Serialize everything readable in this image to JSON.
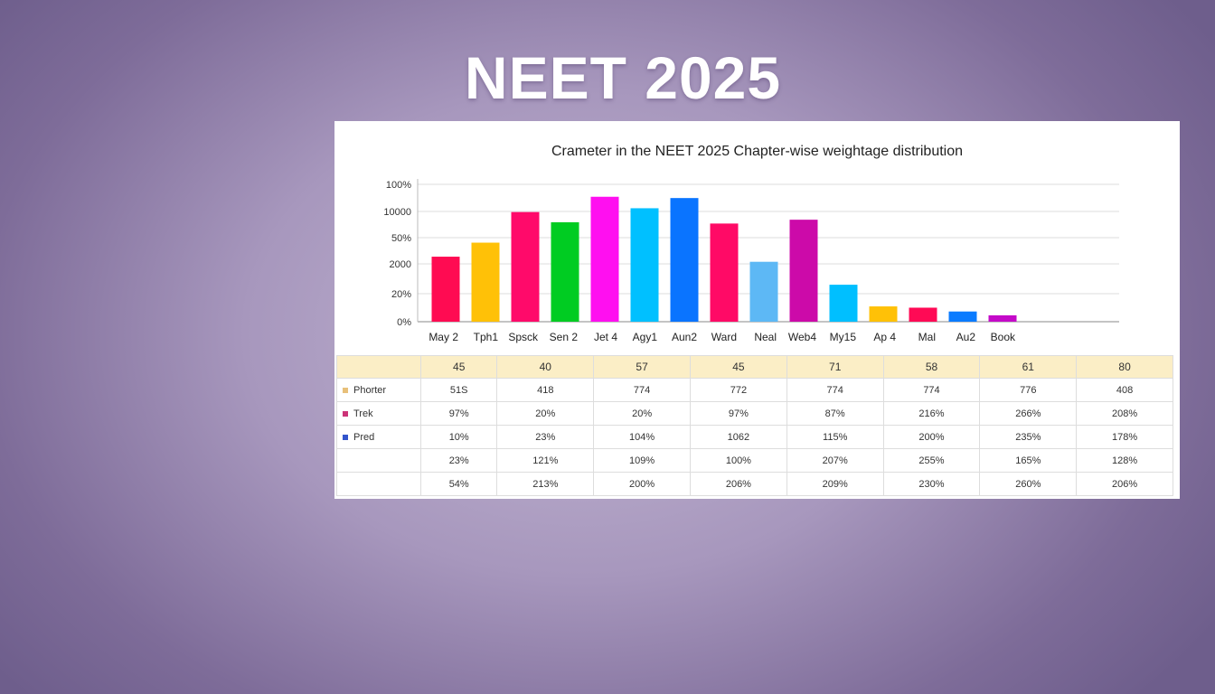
{
  "page_title": "NEET 2025",
  "chart_data": {
    "type": "bar",
    "title": "Crameter in the NEET 2025 Chapter-wise weightage distribution",
    "xlabel": "",
    "ylabel": "",
    "grid": true,
    "ytick_labels": [
      "0%",
      "20%",
      "2000",
      "50%",
      "10000",
      "100%"
    ],
    "ylim": [
      0,
      5.6
    ],
    "categories": [
      "May 2",
      "Tph1",
      "Spsck",
      "Sen 2",
      "Jet 4",
      "Agy1",
      "Aun2",
      "Ward",
      "Neal",
      "Web4",
      "My15",
      "Ap 4",
      "Mal",
      "Au2",
      "Book"
    ],
    "values": [
      2.55,
      3.1,
      4.3,
      3.9,
      4.9,
      4.45,
      4.85,
      3.85,
      2.35,
      4.0,
      1.45,
      0.6,
      0.55,
      0.4,
      0.25
    ],
    "colors": [
      "#ff0b52",
      "#ffc107",
      "#ff0a6a",
      "#00cc22",
      "#ff0ff0",
      "#00c0ff",
      "#0a74ff",
      "#ff0a66",
      "#5db8f5",
      "#cc0aa9",
      "#00bfff",
      "#ffc107",
      "#ff0a55",
      "#0a7bff",
      "#c40ac8"
    ]
  },
  "table": {
    "header": [
      "",
      "45",
      "40",
      "57",
      "45",
      "71",
      "58",
      "61",
      "80"
    ],
    "rows": [
      {
        "label": "Phorter",
        "color": "#e8c07a",
        "cells": [
          "51S",
          "418",
          "774",
          "772",
          "774",
          "774",
          "776",
          "408"
        ]
      },
      {
        "label": "Trek",
        "color": "#cc3377",
        "cells": [
          "97%",
          "20%",
          "20%",
          "97%",
          "87%",
          "216%",
          "266%",
          "208%"
        ]
      },
      {
        "label": "Pred",
        "color": "#3355cc",
        "cells": [
          "10%",
          "23%",
          "104%",
          "1062",
          "115%",
          "200%",
          "235%",
          "178%"
        ]
      },
      {
        "label": "",
        "color": "",
        "cells": [
          "23%",
          "121%",
          "109%",
          "100%",
          "207%",
          "255%",
          "165%",
          "128%"
        ]
      },
      {
        "label": "",
        "color": "",
        "cells": [
          "54%",
          "213%",
          "200%",
          "206%",
          "209%",
          "230%",
          "260%",
          "206%"
        ]
      }
    ]
  }
}
